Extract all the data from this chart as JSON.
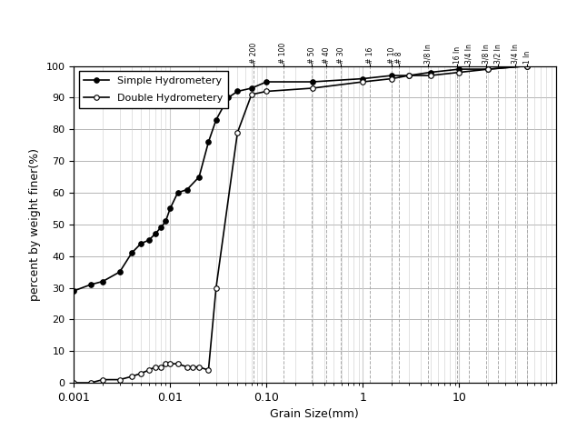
{
  "title": "",
  "xlabel": "Grain Size(mm)",
  "ylabel": "percent by weight finer(%)",
  "xlim": [
    0.001,
    100
  ],
  "ylim": [
    0,
    100
  ],
  "simple_hydro_x": [
    0.001,
    0.0015,
    0.002,
    0.003,
    0.004,
    0.005,
    0.006,
    0.007,
    0.008,
    0.009,
    0.01,
    0.012,
    0.015,
    0.02,
    0.025,
    0.03,
    0.04,
    0.05,
    0.07,
    0.1,
    0.3,
    1.0,
    2.0,
    3.0,
    5.0,
    10.0,
    20.0,
    50.0
  ],
  "simple_hydro_y": [
    29,
    31,
    32,
    35,
    41,
    44,
    45,
    47,
    49,
    51,
    55,
    60,
    61,
    65,
    76,
    83,
    90,
    92,
    93,
    95,
    95,
    96,
    97,
    97,
    98,
    99,
    99,
    100
  ],
  "double_hydro_x": [
    0.001,
    0.0015,
    0.002,
    0.003,
    0.004,
    0.005,
    0.006,
    0.007,
    0.008,
    0.009,
    0.01,
    0.012,
    0.015,
    0.017,
    0.02,
    0.025,
    0.03,
    0.05,
    0.07,
    0.1,
    0.3,
    1.0,
    2.0,
    3.0,
    5.0,
    10.0,
    20.0,
    50.0
  ],
  "double_hydro_y": [
    0,
    0,
    1,
    1,
    2,
    3,
    4,
    5,
    5,
    6,
    6,
    6,
    5,
    5,
    5,
    4,
    30,
    79,
    91,
    92,
    93,
    95,
    96,
    97,
    97,
    98,
    99,
    100
  ],
  "sieve_positions": [
    0.074,
    0.149,
    0.297,
    0.42,
    0.595,
    1.19,
    2.0,
    2.38,
    4.76,
    9.525,
    12.7,
    19.05,
    25.4,
    38.1,
    50.8
  ],
  "sieve_names": [
    "# 200",
    "# 100",
    "# 50",
    "# 40",
    "# 30",
    "# 16",
    "# 10",
    "# 8",
    "3/8 In",
    "16 In",
    "3/4 In",
    "3/8 In",
    "3/2 In",
    "3/4 In",
    "1 In"
  ],
  "xtick_positions": [
    0.001,
    0.01,
    0.1,
    1,
    10
  ],
  "xtick_labels": [
    "0.001",
    "0.01",
    "0.10",
    "1",
    "10"
  ],
  "ytick_positions": [
    0,
    10,
    20,
    30,
    40,
    50,
    60,
    70,
    80,
    90,
    100
  ],
  "background_color": "#ffffff",
  "line_color": "#000000",
  "grid_minor_color": "#cccccc",
  "grid_major_color": "#999999",
  "sieve_line_color": "#aaaaaa"
}
